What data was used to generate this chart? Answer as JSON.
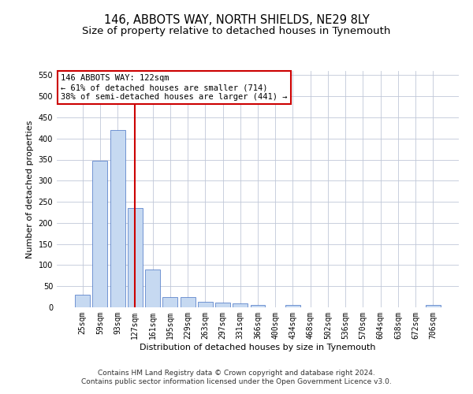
{
  "title": "146, ABBOTS WAY, NORTH SHIELDS, NE29 8LY",
  "subtitle": "Size of property relative to detached houses in Tynemouth",
  "xlabel": "Distribution of detached houses by size in Tynemouth",
  "ylabel": "Number of detached properties",
  "categories": [
    "25sqm",
    "59sqm",
    "93sqm",
    "127sqm",
    "161sqm",
    "195sqm",
    "229sqm",
    "263sqm",
    "297sqm",
    "331sqm",
    "366sqm",
    "400sqm",
    "434sqm",
    "468sqm",
    "502sqm",
    "536sqm",
    "570sqm",
    "604sqm",
    "638sqm",
    "672sqm",
    "706sqm"
  ],
  "values": [
    29,
    348,
    420,
    235,
    90,
    25,
    25,
    14,
    12,
    10,
    5,
    0,
    5,
    0,
    0,
    0,
    0,
    0,
    0,
    0,
    5
  ],
  "bar_color": "#c6d9f1",
  "bar_edge_color": "#4472c4",
  "vline_x_index": 3,
  "vline_color": "#cc0000",
  "annotation_line1": "146 ABBOTS WAY: 122sqm",
  "annotation_line2": "← 61% of detached houses are smaller (714)",
  "annotation_line3": "38% of semi-detached houses are larger (441) →",
  "annotation_box_color": "#cc0000",
  "ylim": [
    0,
    560
  ],
  "yticks": [
    0,
    50,
    100,
    150,
    200,
    250,
    300,
    350,
    400,
    450,
    500,
    550
  ],
  "footer_line1": "Contains HM Land Registry data © Crown copyright and database right 2024.",
  "footer_line2": "Contains public sector information licensed under the Open Government Licence v3.0.",
  "bg_color": "#ffffff",
  "grid_color": "#c0c8d8",
  "title_fontsize": 10.5,
  "subtitle_fontsize": 9.5,
  "axis_label_fontsize": 8,
  "tick_fontsize": 7,
  "annotation_fontsize": 7.5,
  "footer_fontsize": 6.5
}
